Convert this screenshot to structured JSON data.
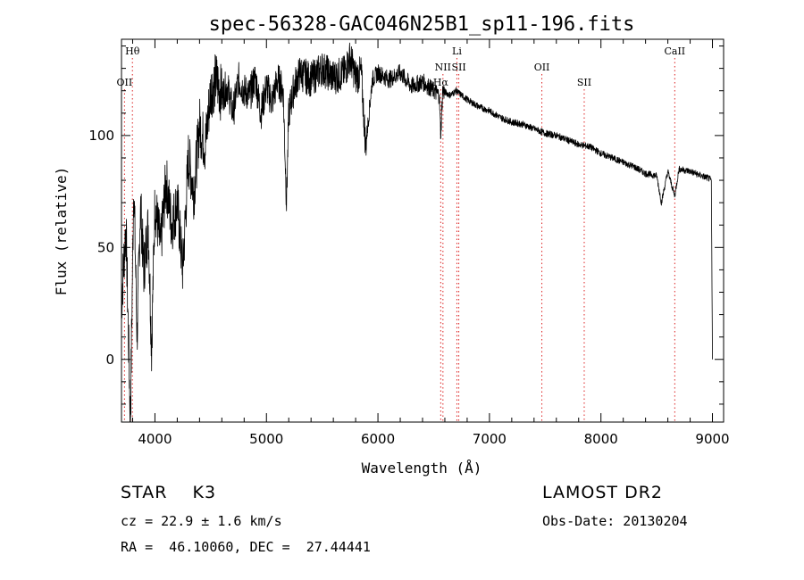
{
  "chart_data": {
    "type": "line",
    "title": "spec-56328-GAC046N25B1_sp11-196.fits",
    "xlabel": "Wavelength (Å)",
    "ylabel": "Flux (relative)",
    "xlim": [
      3700,
      9100
    ],
    "ylim": [
      -28,
      143
    ],
    "x_ticks": [
      4000,
      5000,
      6000,
      7000,
      8000,
      9000
    ],
    "y_ticks": [
      0,
      50,
      100
    ],
    "spectrum": {
      "name": "Flux",
      "x": [
        3700,
        3740,
        3780,
        3810,
        3840,
        3870,
        3900,
        3940,
        3970,
        4000,
        4050,
        4100,
        4150,
        4200,
        4250,
        4300,
        4350,
        4400,
        4450,
        4500,
        4550,
        4600,
        4650,
        4700,
        4750,
        4800,
        4850,
        4900,
        4950,
        5000,
        5050,
        5100,
        5150,
        5180,
        5200,
        5250,
        5300,
        5400,
        5500,
        5600,
        5700,
        5750,
        5800,
        5850,
        5890,
        5950,
        6000,
        6100,
        6200,
        6300,
        6400,
        6500,
        6550,
        6563,
        6580,
        6650,
        6700,
        6800,
        6900,
        7000,
        7100,
        7200,
        7300,
        7400,
        7500,
        7600,
        7700,
        7800,
        7900,
        8000,
        8100,
        8200,
        8300,
        8400,
        8500,
        8542,
        8600,
        8662,
        8700,
        8800,
        8900,
        8960,
        8990,
        9000
      ],
      "y": [
        25,
        60,
        -28,
        80,
        10,
        70,
        40,
        60,
        5,
        70,
        50,
        80,
        60,
        70,
        40,
        90,
        75,
        105,
        95,
        120,
        125,
        118,
        122,
        110,
        125,
        120,
        118,
        126,
        110,
        122,
        115,
        125,
        120,
        70,
        110,
        122,
        128,
        125,
        130,
        126,
        128,
        135,
        126,
        128,
        95,
        125,
        128,
        125,
        128,
        122,
        124,
        120,
        118,
        100,
        120,
        118,
        120,
        116,
        113,
        111,
        108,
        106,
        105,
        103,
        101,
        100,
        98,
        96,
        95,
        92,
        90,
        88,
        86,
        83,
        82,
        70,
        84,
        73,
        85,
        84,
        82,
        81,
        80,
        0
      ]
    },
    "line_markers": [
      {
        "label": "Hθ",
        "x": 3798,
        "row": 1
      },
      {
        "label": "OII",
        "x": 3727,
        "row": 3
      },
      {
        "label": "Li",
        "x": 6708,
        "row": 1
      },
      {
        "label": "NII",
        "x": 6583,
        "row": 2
      },
      {
        "label": "SII",
        "x": 6725,
        "row": 2
      },
      {
        "label": "Hα",
        "x": 6563,
        "row": 3
      },
      {
        "label": "OII",
        "x": 7470,
        "row": 2
      },
      {
        "label": "SII",
        "x": 7850,
        "row": 3
      },
      {
        "label": "CaII",
        "x": 8662,
        "row": 1
      }
    ],
    "marker_color": "#dd2222",
    "grid": false
  },
  "info": {
    "object": "STAR    K3",
    "survey": "LAMOST DR2",
    "redshift": "cz = 22.9 ± 1.6 km/s",
    "obs_date": "Obs-Date: 20130204",
    "coords": "RA =  46.10060, DEC =  27.44441"
  }
}
